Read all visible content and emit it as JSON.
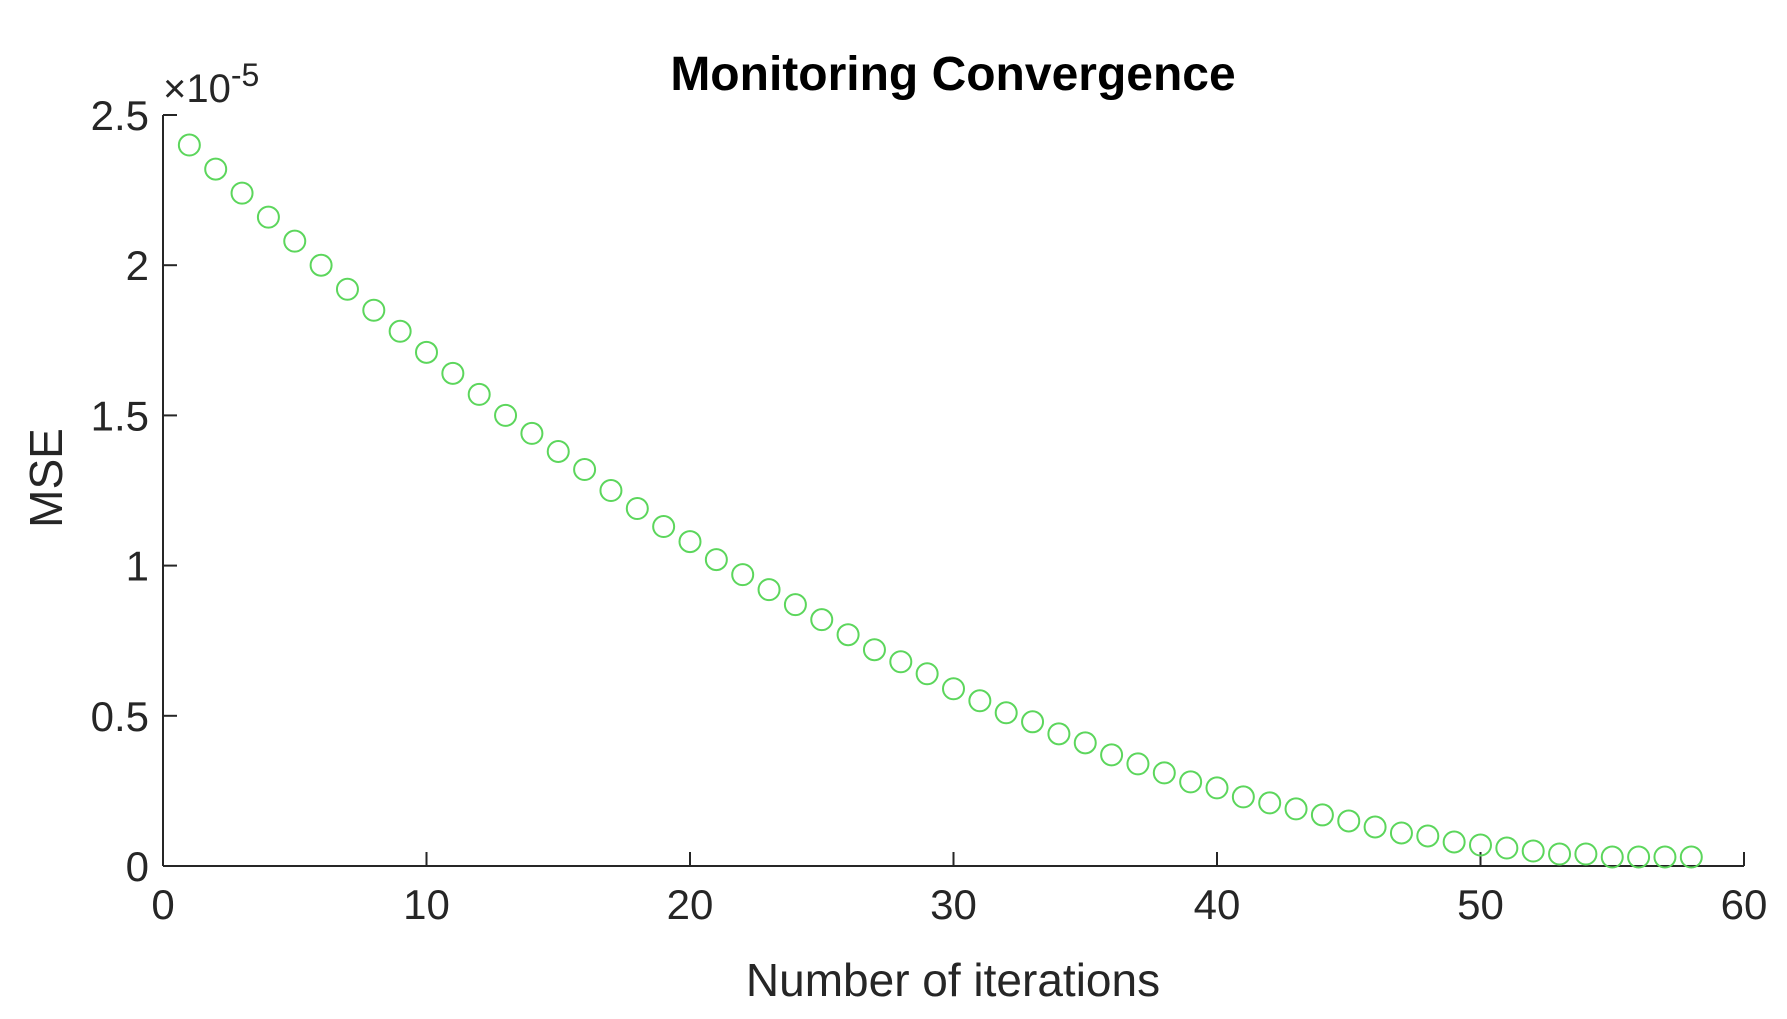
{
  "chart_data": {
    "type": "scatter",
    "title": "Monitoring Convergence",
    "xlabel": "Number of iterations",
    "ylabel": "MSE",
    "y_exponent_label": "×10",
    "y_exponent_power": "-5",
    "xlim": [
      0,
      60
    ],
    "ylim": [
      0,
      2.5
    ],
    "x_ticks": [
      0,
      10,
      20,
      30,
      40,
      50,
      60
    ],
    "y_ticks": [
      0,
      0.5,
      1,
      1.5,
      2,
      2.5
    ],
    "x_tick_labels": [
      "0",
      "10",
      "20",
      "30",
      "40",
      "50",
      "60"
    ],
    "y_tick_labels": [
      "0",
      "0.5",
      "1",
      "1.5",
      "2",
      "2.5"
    ],
    "grid": false,
    "marker": "open-circle",
    "marker_color": "#5cd65c",
    "series": [
      {
        "x": [
          1,
          2,
          3,
          4,
          5,
          6,
          7,
          8,
          9,
          10,
          11,
          12,
          13,
          14,
          15,
          16,
          17,
          18,
          19,
          20,
          21,
          22,
          23,
          24,
          25,
          26,
          27,
          28,
          29,
          30,
          31,
          32,
          33,
          34,
          35,
          36,
          37,
          38,
          39,
          40,
          41,
          42,
          43,
          44,
          45,
          46,
          47,
          48,
          49,
          50,
          51,
          52,
          53,
          54,
          55,
          56,
          57,
          58
        ],
        "y": [
          2.4,
          2.32,
          2.24,
          2.16,
          2.08,
          2.0,
          1.92,
          1.85,
          1.78,
          1.71,
          1.64,
          1.57,
          1.5,
          1.44,
          1.38,
          1.32,
          1.25,
          1.19,
          1.13,
          1.08,
          1.02,
          0.97,
          0.92,
          0.87,
          0.82,
          0.77,
          0.72,
          0.68,
          0.64,
          0.59,
          0.55,
          0.51,
          0.48,
          0.44,
          0.41,
          0.37,
          0.34,
          0.31,
          0.28,
          0.26,
          0.23,
          0.21,
          0.19,
          0.17,
          0.15,
          0.13,
          0.11,
          0.1,
          0.08,
          0.07,
          0.06,
          0.05,
          0.04,
          0.04,
          0.03,
          0.03,
          0.03,
          0.03
        ]
      }
    ]
  }
}
